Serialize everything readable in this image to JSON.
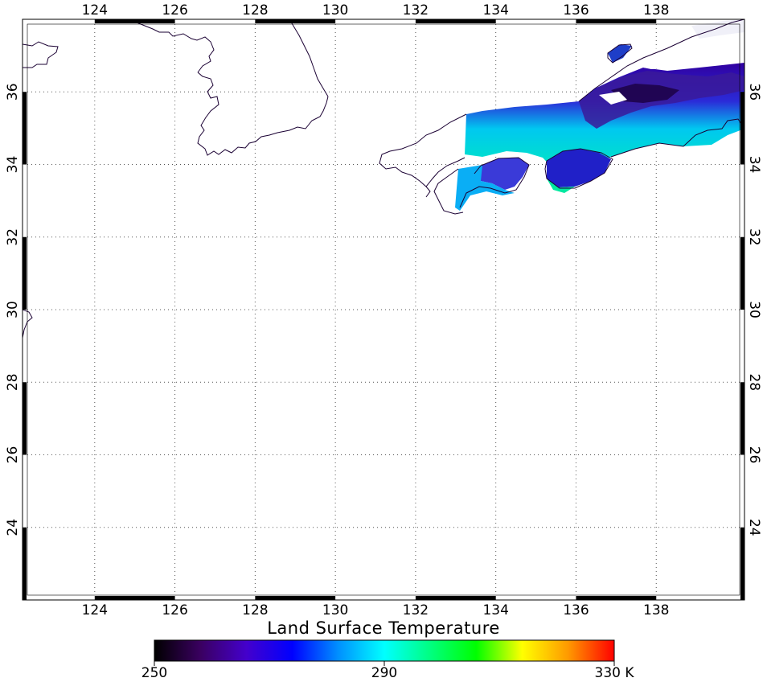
{
  "map": {
    "title": "Land Surface Temperature",
    "projection": "cylindrical",
    "lon_range": [
      122.2,
      140.2
    ],
    "lat_range": [
      22.0,
      38.0
    ],
    "lon_ticks": [
      "124",
      "126",
      "128",
      "130",
      "132",
      "134",
      "136",
      "138"
    ],
    "lat_ticks": [
      "24",
      "26",
      "28",
      "30",
      "32",
      "34",
      "36"
    ],
    "grid": "dotted",
    "coastline_color": "#1a0033"
  },
  "colorbar": {
    "min": 250,
    "max": 330,
    "unit": "K",
    "tick_labels": [
      "250",
      "290",
      "330 K"
    ],
    "stops": [
      "#000000",
      "#3a0060",
      "#4400cc",
      "#0000ff",
      "#0090ff",
      "#00ffff",
      "#00ff80",
      "#00ff00",
      "#ffff00",
      "#ff9900",
      "#ff0000"
    ]
  }
}
